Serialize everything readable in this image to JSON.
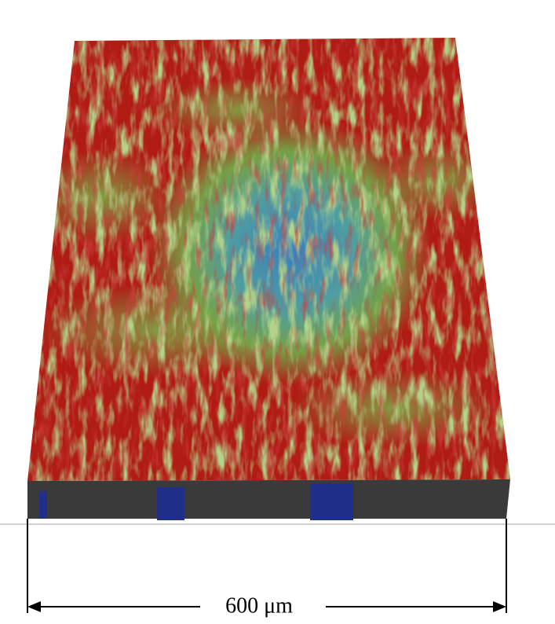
{
  "scale_bar": {
    "label": "600 μm"
  }
}
